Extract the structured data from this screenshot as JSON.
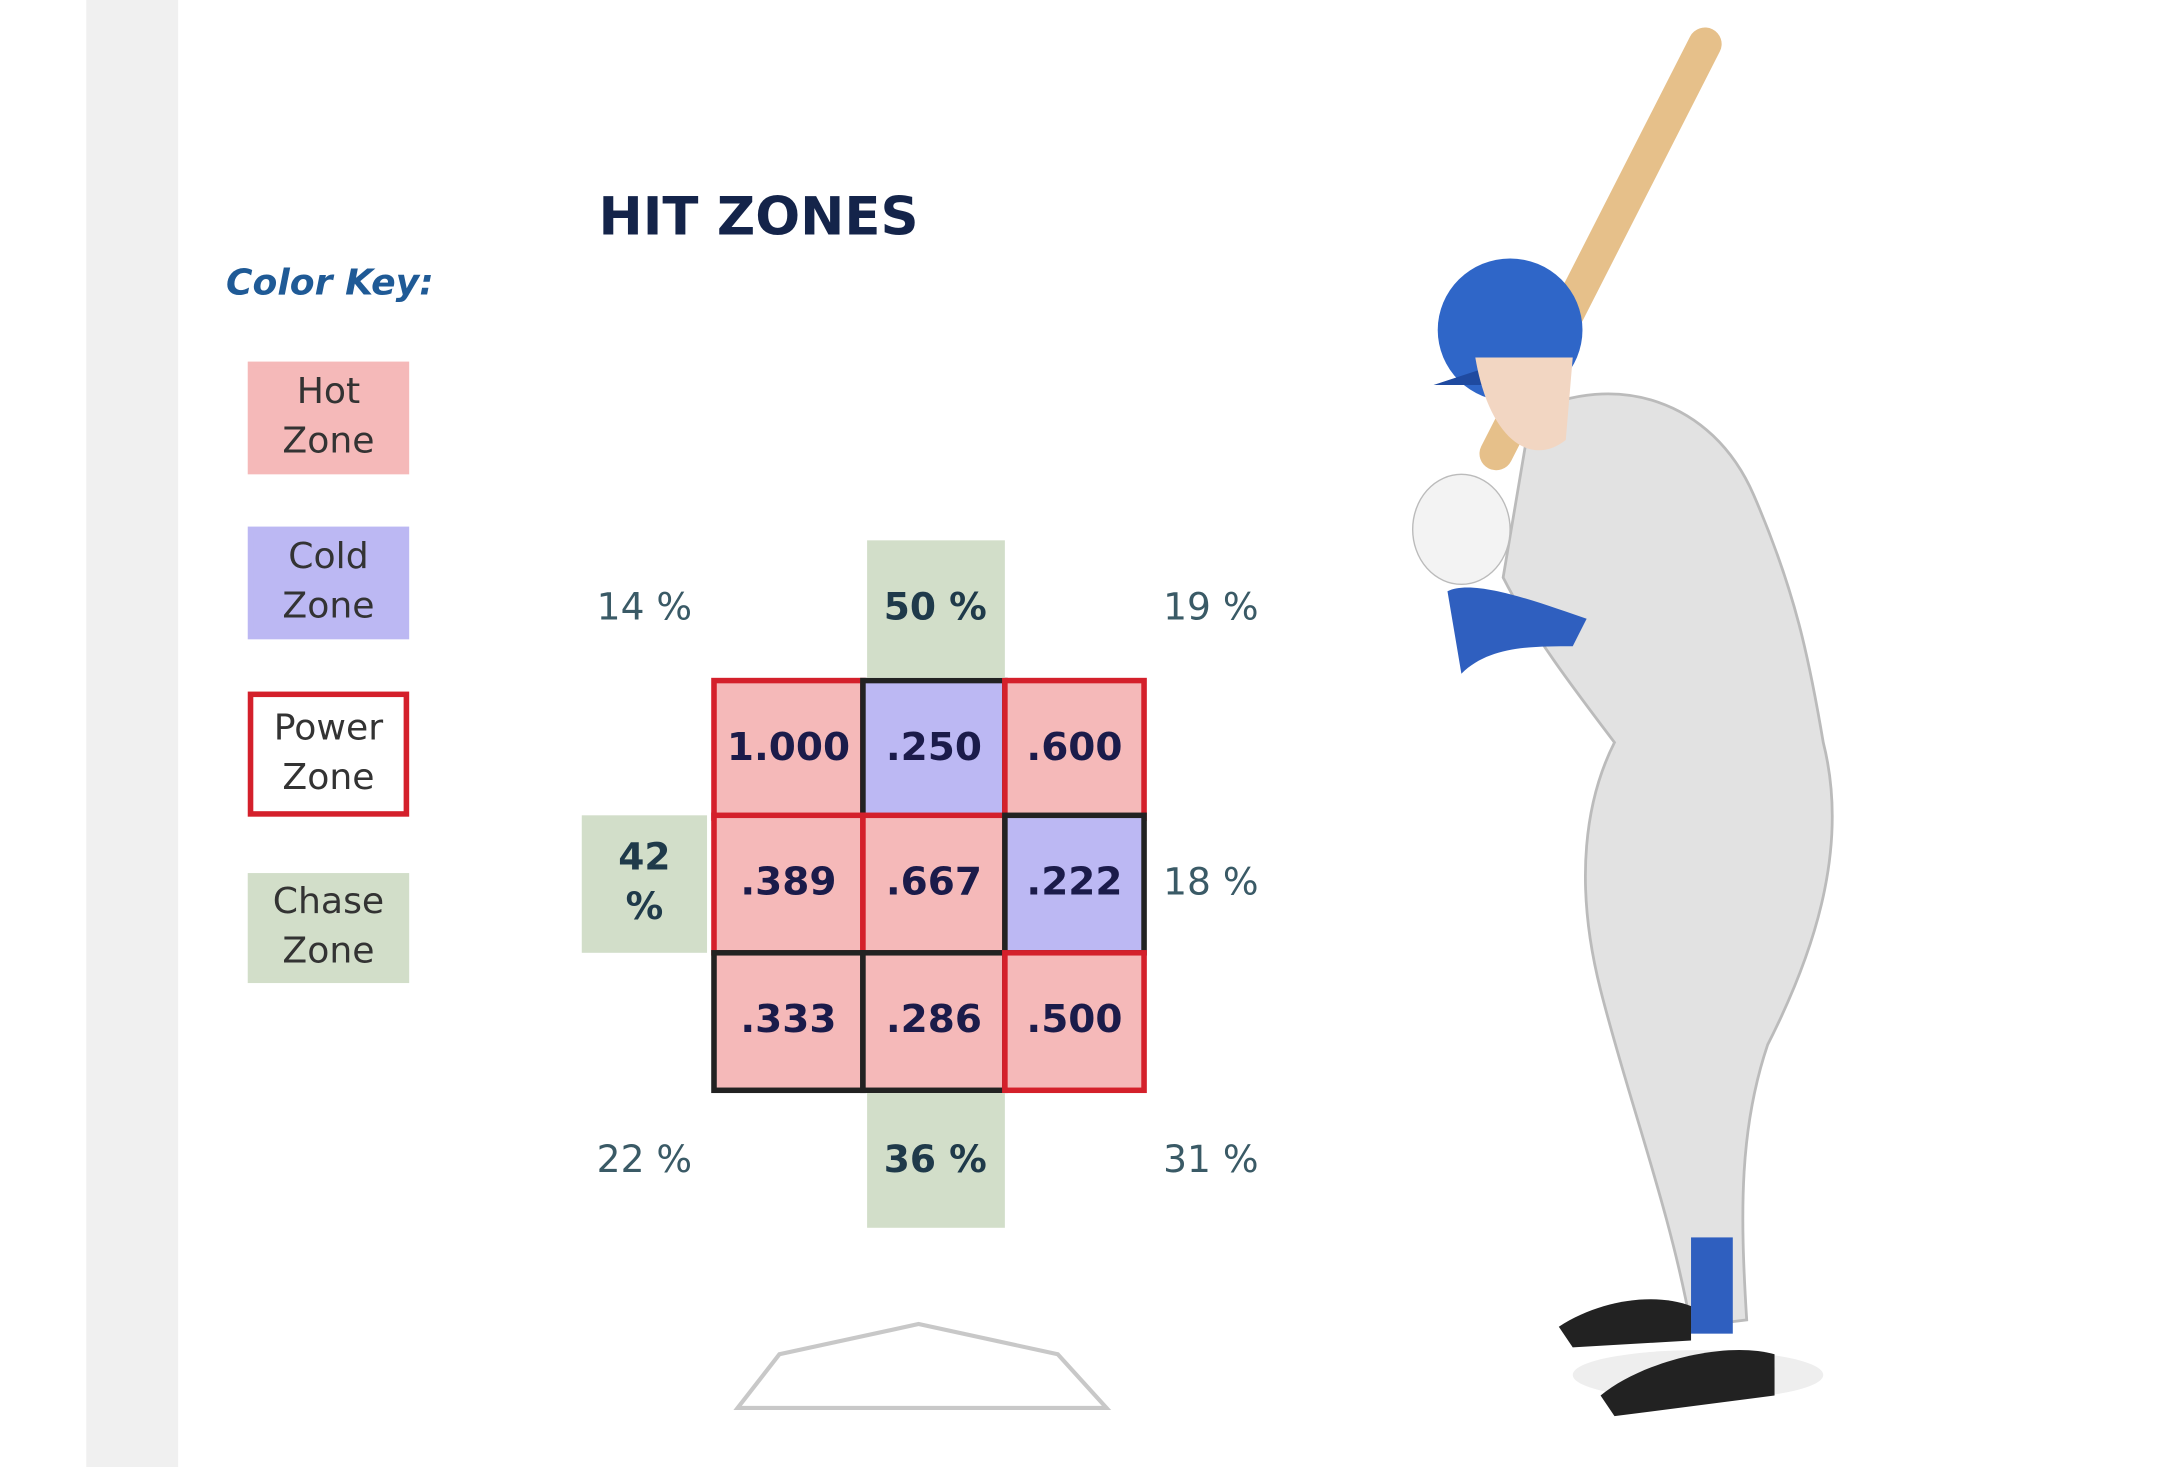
{
  "title": "HIT ZONES",
  "color_key": {
    "label": "Color Key:",
    "items": [
      {
        "lines": [
          "Hot",
          "Zone"
        ],
        "fill": "#f5b9b9",
        "border": "#f5b9b9"
      },
      {
        "lines": [
          "Cold",
          "Zone"
        ],
        "fill": "#bcb8f3",
        "border": "#bcb8f3"
      },
      {
        "lines": [
          "Power",
          "Zone"
        ],
        "fill": "#ffffff",
        "border": "#d4202b"
      },
      {
        "lines": [
          "Chase",
          "Zone"
        ],
        "fill": "#d2dec9",
        "border": "#d2dec9"
      }
    ]
  },
  "zones": {
    "rows": [
      [
        {
          "text": "1.000",
          "fill": "#f5b9b9",
          "border": "#d4202b"
        },
        {
          "text": ".250",
          "fill": "#bcb8f3",
          "border": "#222222"
        },
        {
          "text": ".600",
          "fill": "#f5b9b9",
          "border": "#d4202b"
        }
      ],
      [
        {
          "text": ".389",
          "fill": "#f5b9b9",
          "border": "#d4202b"
        },
        {
          "text": ".667",
          "fill": "#f5b9b9",
          "border": "#d4202b"
        },
        {
          "text": ".222",
          "fill": "#bcb8f3",
          "border": "#222222"
        }
      ],
      [
        {
          "text": ".333",
          "fill": "#f5b9b9",
          "border": "#222222"
        },
        {
          "text": ".286",
          "fill": "#f5b9b9",
          "border": "#222222"
        },
        {
          "text": ".500",
          "fill": "#f5b9b9",
          "border": "#d4202b"
        }
      ]
    ]
  },
  "outside": [
    {
      "lines": [
        "14 %"
      ]
    },
    {
      "lines": [
        "50 %"
      ],
      "fill": "#d2dec9"
    },
    {
      "lines": [
        "19 %"
      ]
    },
    {
      "lines": [
        "42",
        "%"
      ],
      "fill": "#d2dec9"
    },
    {
      "lines": [
        "18 %"
      ]
    },
    {
      "lines": [
        "22 %"
      ]
    },
    {
      "lines": [
        "36 %"
      ],
      "fill": "#d2dec9"
    },
    {
      "lines": [
        "31 %"
      ]
    }
  ]
}
